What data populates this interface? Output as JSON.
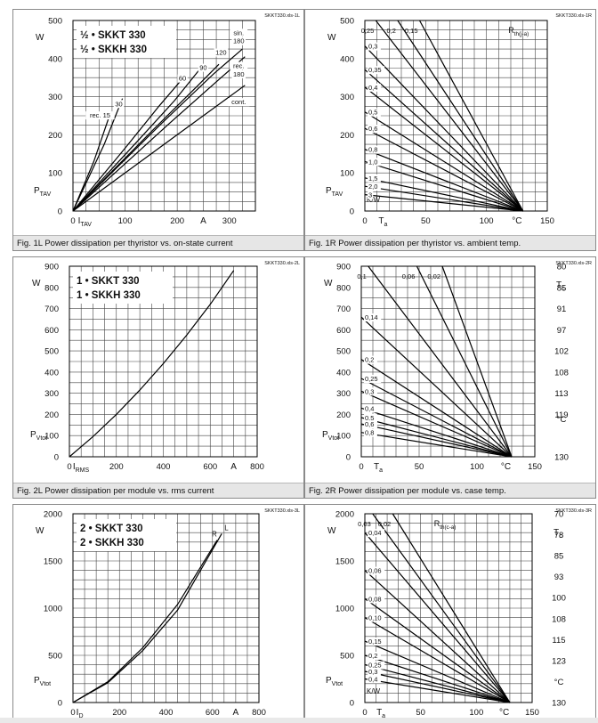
{
  "chart_data": [
    {
      "id": "1L",
      "type": "line",
      "ref": "SKKT330.xls-1L",
      "caption": "Fig. 1L Power dissipation per thyristor vs. on-state current",
      "legend": [
        "½ • SKKT 330",
        "½ • SKKH 330"
      ],
      "ylabel": "P",
      "ylabel_sub": "TAV",
      "yunit": "W",
      "xlabel": "I",
      "xlabel_sub": "TAV",
      "xunit": "A",
      "xlim": [
        0,
        350
      ],
      "ylim": [
        0,
        500
      ],
      "xticks": [
        0,
        100,
        200,
        300
      ],
      "yticks": [
        0,
        100,
        200,
        300,
        400,
        500
      ],
      "series": [
        {
          "name": "rec. 15",
          "x": [
            0,
            40,
            70
          ],
          "y": [
            0,
            130,
            250
          ]
        },
        {
          "name": "30",
          "x": [
            0,
            60,
            95
          ],
          "y": [
            0,
            175,
            295
          ]
        },
        {
          "name": "60",
          "x": [
            0,
            100,
            165,
            215
          ],
          "y": [
            0,
            165,
            275,
            355
          ]
        },
        {
          "name": "90",
          "x": [
            0,
            125,
            195,
            245
          ],
          "y": [
            0,
            185,
            290,
            375
          ]
        },
        {
          "name": "120",
          "x": [
            0,
            155,
            240,
            280
          ],
          "y": [
            0,
            215,
            330,
            385
          ]
        },
        {
          "name": "sin. 180",
          "x": [
            0,
            170,
            270,
            325
          ],
          "y": [
            0,
            230,
            360,
            425
          ]
        },
        {
          "name": "rec. 180",
          "x": [
            0,
            185,
            280,
            330
          ],
          "y": [
            0,
            230,
            345,
            405
          ]
        },
        {
          "name": "cont.",
          "x": [
            0,
            200,
            330
          ],
          "y": [
            0,
            200,
            330
          ]
        }
      ],
      "annotations": [
        {
          "text": "rec. 15",
          "x": 52,
          "y": 245
        },
        {
          "text": "30",
          "x": 88,
          "y": 275
        },
        {
          "text": "60",
          "x": 210,
          "y": 342
        },
        {
          "text": "90",
          "x": 250,
          "y": 370
        },
        {
          "text": "120",
          "x": 284,
          "y": 410
        },
        {
          "text": "sin.",
          "x": 318,
          "y": 462
        },
        {
          "text": "180",
          "x": 318,
          "y": 440
        },
        {
          "text": "rec.",
          "x": 318,
          "y": 375
        },
        {
          "text": "180",
          "x": 318,
          "y": 353
        },
        {
          "text": "cont.",
          "x": 318,
          "y": 280
        }
      ],
      "grid": true
    },
    {
      "id": "1R",
      "type": "line",
      "ref": "SKKT330.xls-1R",
      "caption": "Fig. 1R Power dissipation per thyristor vs. ambient temp.",
      "ylabel": "P",
      "ylabel_sub": "TAV",
      "yunit": "W",
      "xlabel": "T",
      "xlabel_sub": "a",
      "xunit": "°C",
      "xlim": [
        0,
        150
      ],
      "ylim": [
        0,
        500
      ],
      "xticks": [
        0,
        50,
        100,
        150
      ],
      "yticks": [
        0,
        100,
        200,
        300,
        400,
        500
      ],
      "converge": [
        130,
        0
      ],
      "rth_label": "R",
      "rth_sub": "th(j-a)",
      "rth_unit": "K/W",
      "series": [
        {
          "name": "0,25",
          "x": [
            9,
            130
          ],
          "y": [
            500,
            0
          ]
        },
        {
          "name": "0,2",
          "x": [
            27,
            130
          ],
          "y": [
            500,
            0
          ]
        },
        {
          "name": "0,15",
          "x": [
            45,
            130
          ],
          "y": [
            500,
            0
          ]
        },
        {
          "name": "0,3",
          "x": [
            0,
            130
          ],
          "y": [
            433,
            0
          ]
        },
        {
          "name": "0,35",
          "x": [
            0,
            130
          ],
          "y": [
            371,
            0
          ]
        },
        {
          "name": "0,4",
          "x": [
            0,
            130
          ],
          "y": [
            325,
            0
          ]
        },
        {
          "name": "0,5",
          "x": [
            0,
            130
          ],
          "y": [
            260,
            0
          ]
        },
        {
          "name": "0,6",
          "x": [
            0,
            130
          ],
          "y": [
            217,
            0
          ]
        },
        {
          "name": "0,8",
          "x": [
            0,
            130
          ],
          "y": [
            162,
            0
          ]
        },
        {
          "name": "1,0",
          "x": [
            0,
            130
          ],
          "y": [
            130,
            0
          ]
        },
        {
          "name": "1,5",
          "x": [
            0,
            130
          ],
          "y": [
            87,
            0
          ]
        },
        {
          "name": "2,0",
          "x": [
            0,
            130
          ],
          "y": [
            65,
            0
          ]
        },
        {
          "name": "3",
          "x": [
            0,
            130
          ],
          "y": [
            43,
            0
          ]
        }
      ],
      "grid": true
    },
    {
      "id": "2L",
      "type": "line",
      "ref": "SKKT330.xls-2L",
      "caption": "Fig. 2L Power dissipation per module vs. rms current",
      "legend": [
        "1 • SKKT 330",
        "1 • SKKH 330"
      ],
      "ylabel": "P",
      "ylabel_sub": "Vtot",
      "yunit": "W",
      "xlabel": "I",
      "xlabel_sub": "RMS",
      "xunit": "A",
      "xlim": [
        0,
        800
      ],
      "ylim": [
        0,
        900
      ],
      "xticks": [
        0,
        200,
        400,
        600,
        800
      ],
      "yticks": [
        0,
        100,
        200,
        300,
        400,
        500,
        600,
        700,
        800,
        900
      ],
      "series": [
        {
          "name": "",
          "x": [
            0,
            100,
            200,
            300,
            400,
            500,
            600,
            700
          ],
          "y": [
            0,
            95,
            200,
            315,
            440,
            575,
            720,
            880
          ]
        }
      ],
      "grid": true
    },
    {
      "id": "2R",
      "type": "line",
      "ref": "SKKT330.xls-2R",
      "caption": "Fig. 2R Power dissipation per module vs. case temp.",
      "ylabel": "P",
      "ylabel_sub": "Vtot",
      "yunit": "W",
      "xlabel": "T",
      "xlabel_sub": "a",
      "xunit": "°C",
      "y2label": "T",
      "y2label_sub": "c",
      "y2unit": "°C",
      "xlim": [
        0,
        150
      ],
      "ylim": [
        0,
        900
      ],
      "xticks": [
        0,
        50,
        100,
        150
      ],
      "yticks": [
        0,
        100,
        200,
        300,
        400,
        500,
        600,
        700,
        800,
        900
      ],
      "y2ticks": [
        "130",
        "",
        "119",
        "113",
        "108",
        "102",
        "97",
        "91",
        "85",
        "80"
      ],
      "converge": [
        130,
        0
      ],
      "series": [
        {
          "name": "0,02",
          "x": [
            70,
            130
          ],
          "y": [
            900,
            0
          ]
        },
        {
          "name": "0,06",
          "x": [
            48,
            130
          ],
          "y": [
            900,
            0
          ]
        },
        {
          "name": "0,1",
          "x": [
            6,
            130
          ],
          "y": [
            900,
            0
          ]
        },
        {
          "name": "0,14",
          "x": [
            0,
            130
          ],
          "y": [
            660,
            0
          ]
        },
        {
          "name": "0,2",
          "x": [
            0,
            130
          ],
          "y": [
            460,
            0
          ]
        },
        {
          "name": "0,25",
          "x": [
            0,
            130
          ],
          "y": [
            370,
            0
          ]
        },
        {
          "name": "0,3",
          "x": [
            0,
            130
          ],
          "y": [
            310,
            0
          ]
        },
        {
          "name": "0,4",
          "x": [
            0,
            130
          ],
          "y": [
            230,
            0
          ]
        },
        {
          "name": "0,5",
          "x": [
            0,
            130
          ],
          "y": [
            185,
            0
          ]
        },
        {
          "name": "0,6",
          "x": [
            0,
            130
          ],
          "y": [
            155,
            0
          ]
        },
        {
          "name": "0,8",
          "x": [
            0,
            130
          ],
          "y": [
            115,
            0
          ]
        }
      ],
      "grid": true
    },
    {
      "id": "3L",
      "type": "line",
      "ref": "SKKT330.xls-3L",
      "legend": [
        "2 • SKKT 330",
        "2 • SKKH 330"
      ],
      "ylabel": "P",
      "ylabel_sub": "Vtot",
      "yunit": "W",
      "xlabel": "I",
      "xlabel_sub": "D",
      "xunit": "A",
      "xlim": [
        0,
        800
      ],
      "ylim": [
        0,
        2000
      ],
      "xticks": [
        0,
        200,
        400,
        600,
        800
      ],
      "yticks": [
        0,
        500,
        1000,
        1500,
        2000
      ],
      "series": [
        {
          "name": "R",
          "x": [
            0,
            150,
            300,
            450,
            620
          ],
          "y": [
            0,
            220,
            580,
            1040,
            1720
          ]
        },
        {
          "name": "L",
          "x": [
            0,
            150,
            300,
            450,
            640
          ],
          "y": [
            0,
            210,
            550,
            980,
            1790
          ]
        }
      ],
      "grid": true
    },
    {
      "id": "3R",
      "type": "line",
      "ref": "SKKT330.xls-3R",
      "ylabel": "P",
      "ylabel_sub": "Vtot",
      "yunit": "W",
      "xlabel": "T",
      "xlabel_sub": "a",
      "xunit": "°C",
      "y2label": "T",
      "y2label_sub": "c",
      "xlim": [
        0,
        150
      ],
      "ylim": [
        0,
        2000
      ],
      "xticks": [
        0,
        50,
        100,
        150
      ],
      "yticks": [
        0,
        500,
        1000,
        1500,
        2000
      ],
      "y2ticks": [
        "130",
        "°C",
        "123",
        "115",
        "108",
        "100",
        "93",
        "85",
        "78",
        "70"
      ],
      "converge": [
        130,
        0
      ],
      "rth_label": "R",
      "rth_sub": "th(c-a)",
      "rth_unit": "K/W",
      "series": [
        {
          "name": "0,02",
          "x": [
            25,
            130
          ],
          "y": [
            2000,
            0
          ]
        },
        {
          "name": "0,03",
          "x": [
            7,
            130
          ],
          "y": [
            2000,
            0
          ]
        },
        {
          "name": "0,04",
          "x": [
            0,
            130
          ],
          "y": [
            1800,
            0
          ]
        },
        {
          "name": "0,06",
          "x": [
            0,
            130
          ],
          "y": [
            1400,
            0
          ]
        },
        {
          "name": "0,08",
          "x": [
            0,
            130
          ],
          "y": [
            1100,
            0
          ]
        },
        {
          "name": "0,10",
          "x": [
            0,
            130
          ],
          "y": [
            900,
            0
          ]
        },
        {
          "name": "0,15",
          "x": [
            0,
            130
          ],
          "y": [
            650,
            0
          ]
        },
        {
          "name": "0,2",
          "x": [
            0,
            130
          ],
          "y": [
            500,
            0
          ]
        },
        {
          "name": "0,25",
          "x": [
            0,
            130
          ],
          "y": [
            400,
            0
          ]
        },
        {
          "name": "0,3",
          "x": [
            0,
            130
          ],
          "y": [
            330,
            0
          ]
        },
        {
          "name": "0,4",
          "x": [
            0,
            130
          ],
          "y": [
            250,
            0
          ]
        }
      ],
      "grid": true
    }
  ]
}
